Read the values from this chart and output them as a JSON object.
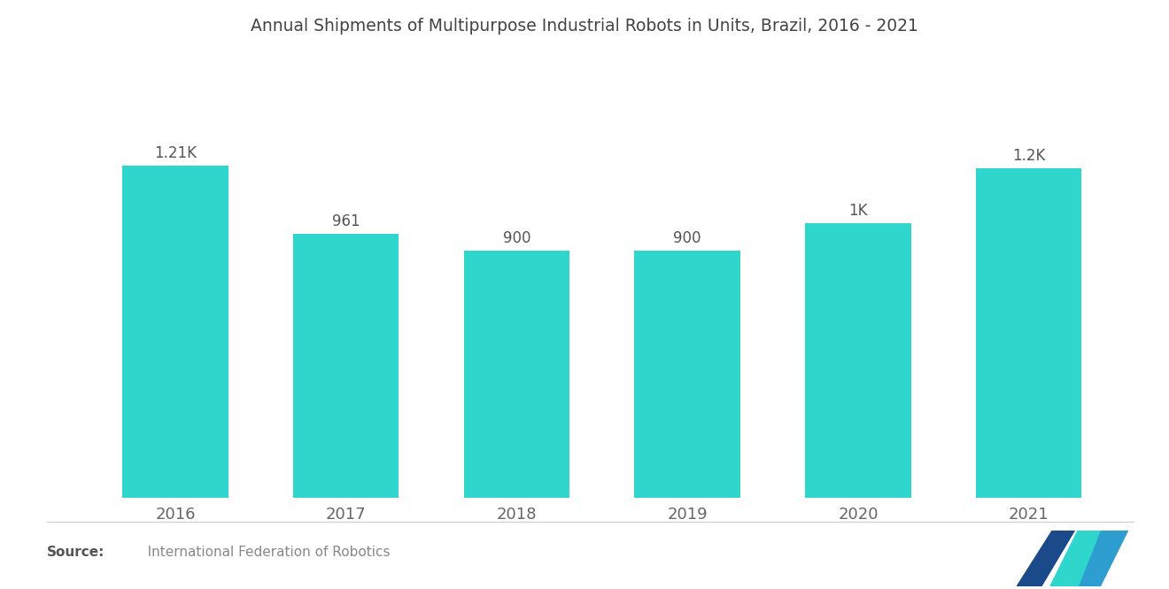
{
  "title": "Annual Shipments of Multipurpose Industrial Robots in Units, Brazil, 2016 - 2021",
  "categories": [
    "2016",
    "2017",
    "2018",
    "2019",
    "2020",
    "2021"
  ],
  "values": [
    1210,
    961,
    900,
    900,
    1000,
    1200
  ],
  "labels": [
    "1.21K",
    "961",
    "900",
    "900",
    "1K",
    "1.2K"
  ],
  "bar_color": "#2FD6CC",
  "background_color": "#ffffff",
  "title_fontsize": 13.5,
  "label_fontsize": 12,
  "tick_fontsize": 13,
  "source_bold": "Source:",
  "source_text": "   International Federation of Robotics",
  "ylim": [
    0,
    1600
  ],
  "bar_width": 0.62,
  "logo_color1": "#1a4a8a",
  "logo_color2": "#2d9ecf",
  "logo_color3": "#2FD6CC"
}
